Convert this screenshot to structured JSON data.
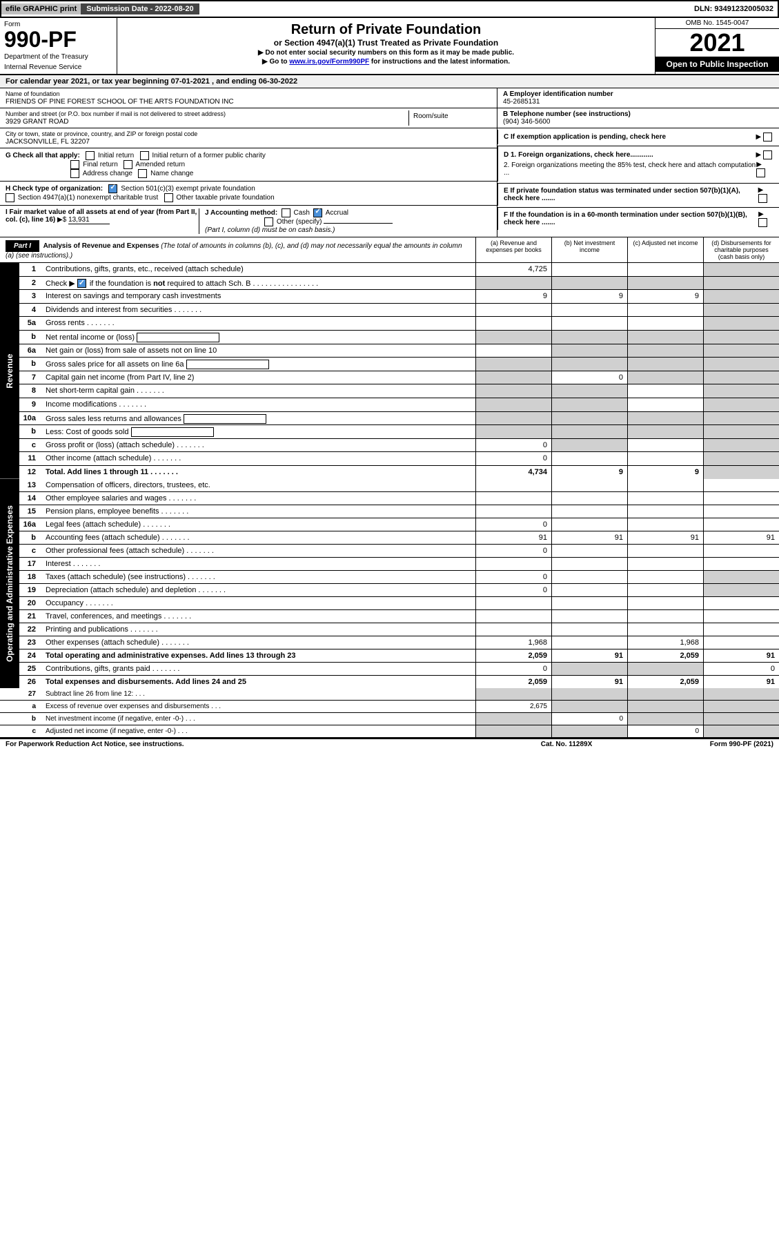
{
  "topbar": {
    "efile": "efile GRAPHIC print",
    "submission_label": "Submission Date - 2022-08-20",
    "dln": "DLN: 93491232005032"
  },
  "header": {
    "form": "Form",
    "form_no": "990-PF",
    "dept": "Department of the Treasury",
    "irs": "Internal Revenue Service",
    "title": "Return of Private Foundation",
    "subtitle": "or Section 4947(a)(1) Trust Treated as Private Foundation",
    "instruct1": "▶ Do not enter social security numbers on this form as it may be made public.",
    "instruct2_pre": "▶ Go to ",
    "instruct2_link": "www.irs.gov/Form990PF",
    "instruct2_post": " for instructions and the latest information.",
    "omb": "OMB No. 1545-0047",
    "year": "2021",
    "open": "Open to Public Inspection"
  },
  "calyear": "For calendar year 2021, or tax year beginning 07-01-2021                              , and ending 06-30-2022",
  "info": {
    "name_label": "Name of foundation",
    "name": "FRIENDS OF PINE FOREST SCHOOL OF THE ARTS FOUNDATION INC",
    "addr_label": "Number and street (or P.O. box number if mail is not delivered to street address)",
    "addr": "3929 GRANT ROAD",
    "room_label": "Room/suite",
    "city_label": "City or town, state or province, country, and ZIP or foreign postal code",
    "city": "JACKSONVILLE, FL  32207",
    "a_label": "A Employer identification number",
    "a_val": "45-2685131",
    "b_label": "B Telephone number (see instructions)",
    "b_val": "(904) 346-5600",
    "c_label": "C If exemption application is pending, check here",
    "d1": "D 1. Foreign organizations, check here............",
    "d2": "2. Foreign organizations meeting the 85% test, check here and attach computation ...",
    "e_label": "E  If private foundation status was terminated under section 507(b)(1)(A), check here .......",
    "f_label": "F  If the foundation is in a 60-month termination under section 507(b)(1)(B), check here .......",
    "g_label": "G Check all that apply:",
    "g_opts": [
      "Initial return",
      "Initial return of a former public charity",
      "Final return",
      "Amended return",
      "Address change",
      "Name change"
    ],
    "h_label": "H Check type of organization:",
    "h_opts": [
      "Section 501(c)(3) exempt private foundation",
      "Section 4947(a)(1) nonexempt charitable trust",
      "Other taxable private foundation"
    ],
    "i_label": "I Fair market value of all assets at end of year (from Part II, col. (c), line 16)",
    "i_val": "13,931",
    "j_label": "J Accounting method:",
    "j_cash": "Cash",
    "j_accrual": "Accrual",
    "j_other": "Other (specify)",
    "j_note": "(Part I, column (d) must be on cash basis.)"
  },
  "part1": {
    "header": "Part I",
    "title": "Analysis of Revenue and Expenses",
    "title_note": "(The total of amounts in columns (b), (c), and (d) may not necessarily equal the amounts in column (a) (see instructions).)",
    "col_a": "(a)   Revenue and expenses per books",
    "col_b": "(b)   Net investment income",
    "col_c": "(c)   Adjusted net income",
    "col_d": "(d)  Disbursements for charitable purposes (cash basis only)"
  },
  "sections": {
    "revenue": "Revenue",
    "expenses": "Operating and Administrative Expenses"
  },
  "rows": [
    {
      "no": "1",
      "desc": "Contributions, gifts, grants, etc., received (attach schedule)",
      "a": "4,725",
      "b": "",
      "c": "",
      "d": "shaded"
    },
    {
      "no": "2",
      "desc": "Check ▶ ☑ if the foundation is not required to attach Sch. B",
      "a": "shaded",
      "b": "shaded",
      "c": "shaded",
      "d": "shaded",
      "has_check": true
    },
    {
      "no": "3",
      "desc": "Interest on savings and temporary cash investments",
      "a": "9",
      "b": "9",
      "c": "9",
      "d": "shaded"
    },
    {
      "no": "4",
      "desc": "Dividends and interest from securities",
      "a": "",
      "b": "",
      "c": "",
      "d": "shaded"
    },
    {
      "no": "5a",
      "desc": "Gross rents",
      "a": "",
      "b": "",
      "c": "",
      "d": "shaded"
    },
    {
      "no": "b",
      "desc": "Net rental income or (loss)",
      "a": "shaded",
      "b": "shaded",
      "c": "shaded",
      "d": "shaded",
      "inline_box": true
    },
    {
      "no": "6a",
      "desc": "Net gain or (loss) from sale of assets not on line 10",
      "a": "",
      "b": "shaded",
      "c": "shaded",
      "d": "shaded"
    },
    {
      "no": "b",
      "desc": "Gross sales price for all assets on line 6a",
      "a": "shaded",
      "b": "shaded",
      "c": "shaded",
      "d": "shaded",
      "inline_box": true
    },
    {
      "no": "7",
      "desc": "Capital gain net income (from Part IV, line 2)",
      "a": "shaded",
      "b": "0",
      "c": "shaded",
      "d": "shaded"
    },
    {
      "no": "8",
      "desc": "Net short-term capital gain",
      "a": "shaded",
      "b": "shaded",
      "c": "",
      "d": "shaded"
    },
    {
      "no": "9",
      "desc": "Income modifications",
      "a": "shaded",
      "b": "shaded",
      "c": "",
      "d": "shaded"
    },
    {
      "no": "10a",
      "desc": "Gross sales less returns and allowances",
      "a": "shaded",
      "b": "shaded",
      "c": "shaded",
      "d": "shaded",
      "inline_box": true
    },
    {
      "no": "b",
      "desc": "Less: Cost of goods sold",
      "a": "shaded",
      "b": "shaded",
      "c": "shaded",
      "d": "shaded",
      "inline_box": true
    },
    {
      "no": "c",
      "desc": "Gross profit or (loss) (attach schedule)",
      "a": "0",
      "b": "shaded",
      "c": "",
      "d": "shaded"
    },
    {
      "no": "11",
      "desc": "Other income (attach schedule)",
      "a": "0",
      "b": "",
      "c": "",
      "d": "shaded"
    },
    {
      "no": "12",
      "desc": "Total. Add lines 1 through 11",
      "a": "4,734",
      "b": "9",
      "c": "9",
      "d": "shaded",
      "bold": true
    }
  ],
  "exp_rows": [
    {
      "no": "13",
      "desc": "Compensation of officers, directors, trustees, etc.",
      "a": "",
      "b": "",
      "c": "",
      "d": ""
    },
    {
      "no": "14",
      "desc": "Other employee salaries and wages",
      "a": "",
      "b": "",
      "c": "",
      "d": ""
    },
    {
      "no": "15",
      "desc": "Pension plans, employee benefits",
      "a": "",
      "b": "",
      "c": "",
      "d": ""
    },
    {
      "no": "16a",
      "desc": "Legal fees (attach schedule)",
      "a": "0",
      "b": "",
      "c": "",
      "d": ""
    },
    {
      "no": "b",
      "desc": "Accounting fees (attach schedule)",
      "a": "91",
      "b": "91",
      "c": "91",
      "d": "91"
    },
    {
      "no": "c",
      "desc": "Other professional fees (attach schedule)",
      "a": "0",
      "b": "",
      "c": "",
      "d": ""
    },
    {
      "no": "17",
      "desc": "Interest",
      "a": "",
      "b": "",
      "c": "",
      "d": ""
    },
    {
      "no": "18",
      "desc": "Taxes (attach schedule) (see instructions)",
      "a": "0",
      "b": "",
      "c": "",
      "d": "shaded"
    },
    {
      "no": "19",
      "desc": "Depreciation (attach schedule) and depletion",
      "a": "0",
      "b": "",
      "c": "",
      "d": "shaded"
    },
    {
      "no": "20",
      "desc": "Occupancy",
      "a": "",
      "b": "",
      "c": "",
      "d": ""
    },
    {
      "no": "21",
      "desc": "Travel, conferences, and meetings",
      "a": "",
      "b": "",
      "c": "",
      "d": ""
    },
    {
      "no": "22",
      "desc": "Printing and publications",
      "a": "",
      "b": "",
      "c": "",
      "d": ""
    },
    {
      "no": "23",
      "desc": "Other expenses (attach schedule)",
      "a": "1,968",
      "b": "",
      "c": "1,968",
      "d": ""
    },
    {
      "no": "24",
      "desc": "Total operating and administrative expenses. Add lines 13 through 23",
      "a": "2,059",
      "b": "91",
      "c": "2,059",
      "d": "91",
      "bold": true
    },
    {
      "no": "25",
      "desc": "Contributions, gifts, grants paid",
      "a": "0",
      "b": "shaded",
      "c": "shaded",
      "d": "0"
    },
    {
      "no": "26",
      "desc": "Total expenses and disbursements. Add lines 24 and 25",
      "a": "2,059",
      "b": "91",
      "c": "2,059",
      "d": "91",
      "bold": true
    }
  ],
  "bottom_rows": [
    {
      "no": "27",
      "desc": "Subtract line 26 from line 12:",
      "a": "shaded",
      "b": "shaded",
      "c": "shaded",
      "d": "shaded"
    },
    {
      "no": "a",
      "desc": "Excess of revenue over expenses and disbursements",
      "a": "2,675",
      "b": "shaded",
      "c": "shaded",
      "d": "shaded",
      "bold": true
    },
    {
      "no": "b",
      "desc": "Net investment income (if negative, enter -0-)",
      "a": "shaded",
      "b": "0",
      "c": "shaded",
      "d": "shaded",
      "bold": true
    },
    {
      "no": "c",
      "desc": "Adjusted net income (if negative, enter -0-)",
      "a": "shaded",
      "b": "shaded",
      "c": "0",
      "d": "shaded",
      "bold": true
    }
  ],
  "footer": {
    "left": "For Paperwork Reduction Act Notice, see instructions.",
    "center": "Cat. No. 11289X",
    "right": "Form 990-PF (2021)"
  }
}
